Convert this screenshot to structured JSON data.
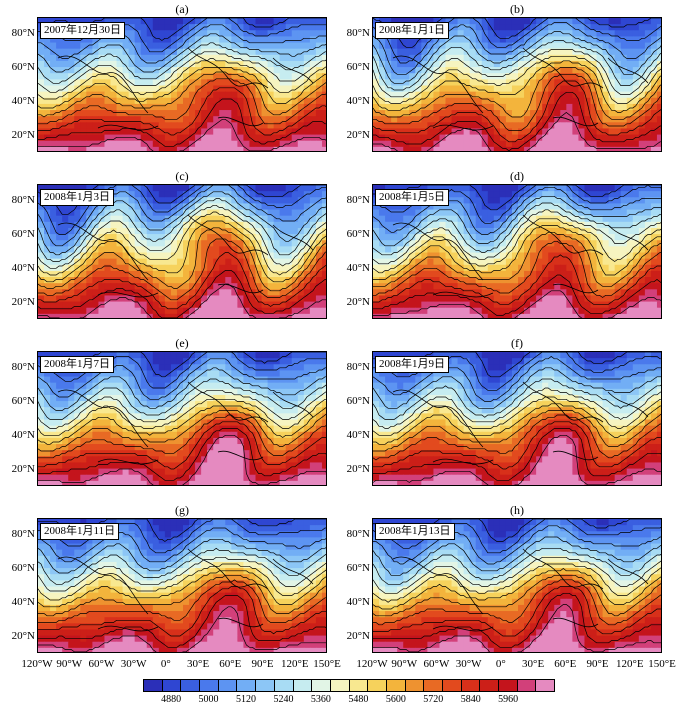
{
  "panels": [
    {
      "letter": "(a)",
      "date": "2007年12月30日"
    },
    {
      "letter": "(b)",
      "date": "2008年1月1日"
    },
    {
      "letter": "(c)",
      "date": "2008年1月3日"
    },
    {
      "letter": "(d)",
      "date": "2008年1月5日"
    },
    {
      "letter": "(e)",
      "date": "2008年1月7日"
    },
    {
      "letter": "(f)",
      "date": "2008年1月9日"
    },
    {
      "letter": "(g)",
      "date": "2008年1月11日"
    },
    {
      "letter": "(h)",
      "date": "2008年1月13日"
    }
  ],
  "lat_labels": [
    "80°N",
    "60°N",
    "40°N",
    "20°N"
  ],
  "lon_labels": [
    "120°W",
    "90°W",
    "60°W",
    "30°W",
    "0°",
    "30°E",
    "60°E",
    "90°E",
    "120°E",
    "150°E"
  ],
  "colorbar": {
    "labels": [
      "4880",
      "5000",
      "5120",
      "5240",
      "5360",
      "5480",
      "5600",
      "5720",
      "5840",
      "5960"
    ],
    "colors": [
      "#2b2fb8",
      "#2f46d2",
      "#3a5fe0",
      "#4a79ec",
      "#5d94f2",
      "#72aef5",
      "#8cc6f6",
      "#a8dcf4",
      "#c6ecf0",
      "#e2f5e6",
      "#f6f4c0",
      "#f8e890",
      "#f6d25c",
      "#f3b43c",
      "#ee9230",
      "#e86a24",
      "#e24a1e",
      "#d8301a",
      "#cc1f18",
      "#c4141c",
      "#d2407a",
      "#e58ac0"
    ]
  }
}
